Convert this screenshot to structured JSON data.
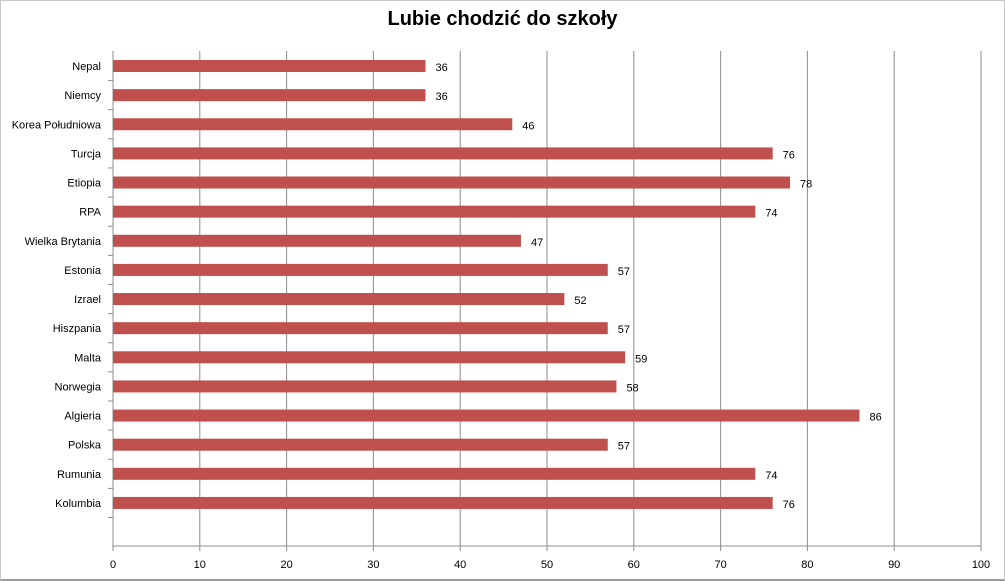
{
  "chart_data": {
    "type": "bar",
    "orientation": "horizontal",
    "title": "Lubie chodzić do szkoły",
    "categories": [
      "Nepal",
      "Niemcy",
      "Korea Południowa",
      "Turcja",
      "Etiopia",
      "RPA",
      "Wielka Brytania",
      "Estonia",
      "Izrael",
      "Hiszpania",
      "Malta",
      "Norwegia",
      "Algieria",
      "Polska",
      "Rumunia",
      "Kolumbia"
    ],
    "values": [
      36,
      36,
      46,
      76,
      78,
      74,
      47,
      57,
      52,
      57,
      59,
      58,
      86,
      57,
      74,
      76
    ],
    "xlim": [
      0,
      100
    ],
    "x_ticks": [
      0,
      10,
      20,
      30,
      40,
      50,
      60,
      70,
      80,
      90,
      100
    ],
    "grid": true,
    "data_labels": true,
    "legend": "none",
    "colors": {
      "bar": "#c0504d",
      "grid": "#8c8c8c"
    }
  }
}
